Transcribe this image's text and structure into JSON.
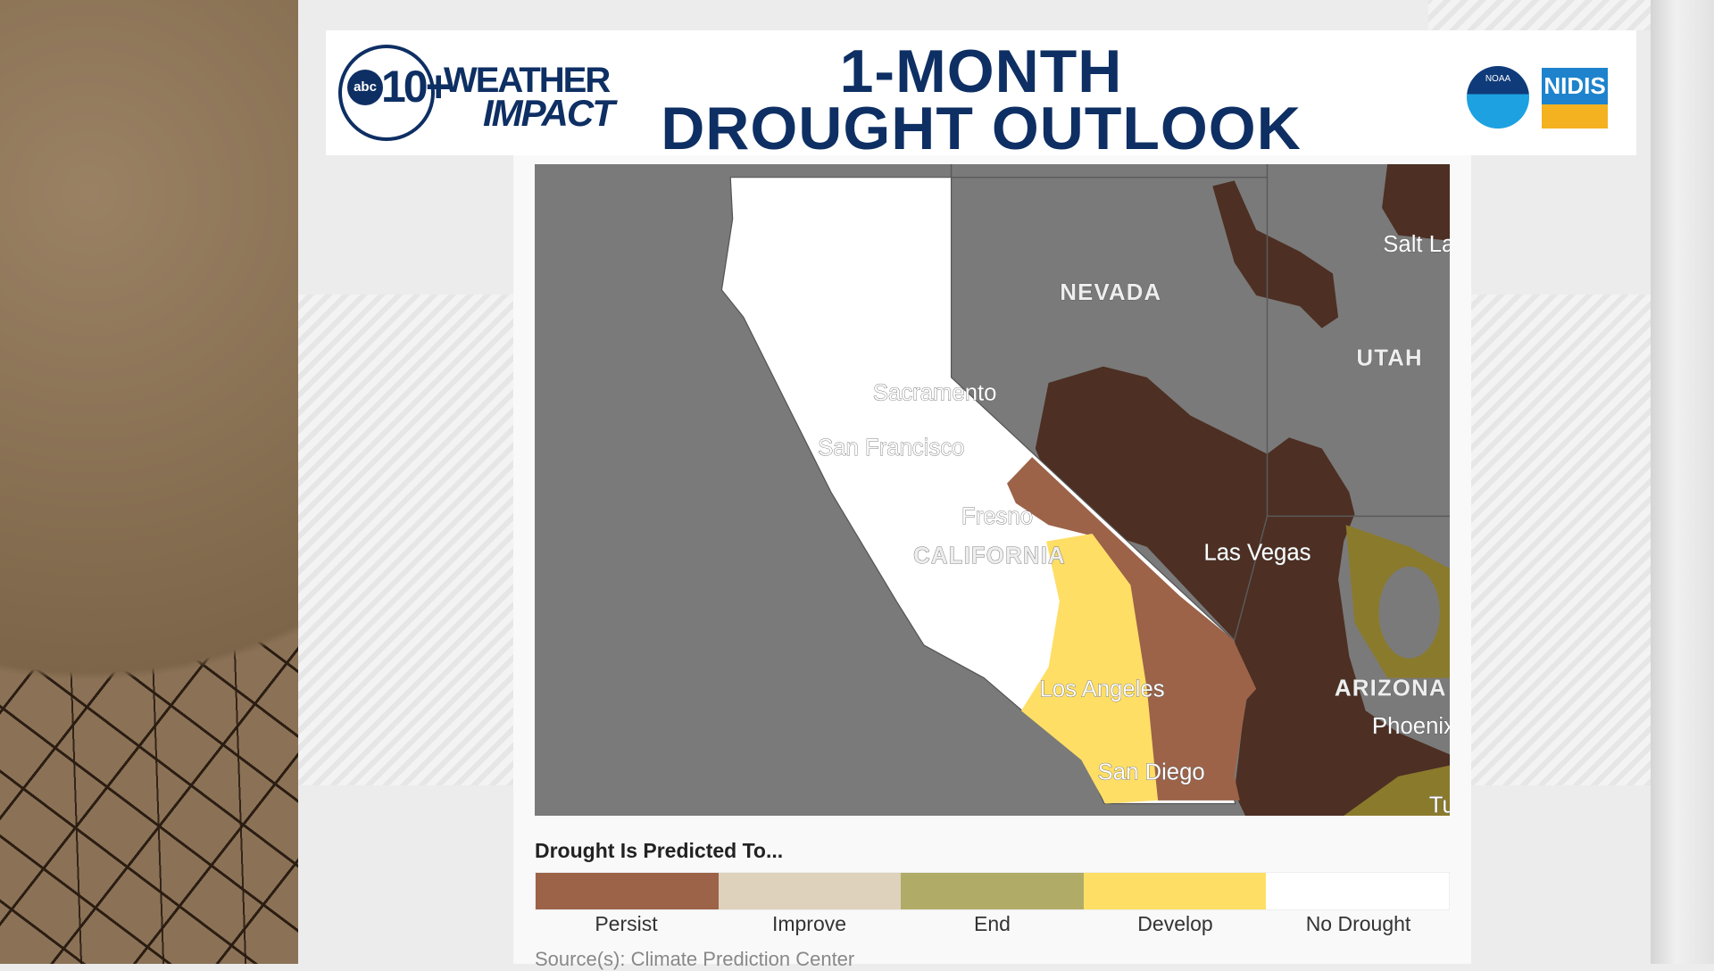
{
  "header": {
    "title_line1": "1-MONTH",
    "title_line2": "DROUGHT OUTLOOK",
    "logo_abc": "abc",
    "logo_10": "10+",
    "logo_weather": "WEATHER",
    "logo_impact": "IMPACT",
    "partner_noaa": "NOAA",
    "partner_nidis": "NIDIS"
  },
  "map": {
    "labels": {
      "nevada": "NEVADA",
      "utah": "UTAH",
      "salt_lake": "Salt La",
      "sacramento": "Sacramento",
      "san_francisco": "San Francisco",
      "fresno": "Fresno",
      "california": "CALIFORNIA",
      "las_vegas": "Las Vegas",
      "los_angeles": "Los Angeles",
      "arizona": "ARIZONA",
      "phoenix": "Phoenix",
      "san_diego": "San Diego",
      "tucson": "Tu"
    },
    "colors": {
      "background": "#7a7a7a",
      "no_drought": "#ffffff",
      "persist_dark": "#4d2f23"
    }
  },
  "legend": {
    "title": "Drought Is Predicted To...",
    "items": [
      {
        "label": "Persist",
        "color": "#9c6349"
      },
      {
        "label": "Improve",
        "color": "#ded2bc"
      },
      {
        "label": "End",
        "color": "#b0ac68"
      },
      {
        "label": "Develop",
        "color": "#ffde66"
      },
      {
        "label": "No Drought",
        "color": "#ffffff"
      }
    ]
  },
  "source": "Source(s): Climate Prediction Center"
}
